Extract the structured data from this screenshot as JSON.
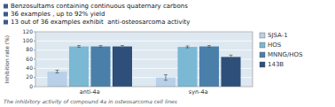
{
  "chart_data": {
    "type": "bar",
    "annotations": [
      "Benzosultams containing continuous quaternary carbons",
      "36 examples , up to 92% yield",
      "13 out of 36 examples exhibit  anti-osteosarcoma activity",
      "The inhibitory activity of compound 4a in osteosarcoma cell lines"
    ],
    "ylabel": "Inhibition rate (%)",
    "categories": [
      "anti-4a",
      "syn-4a"
    ],
    "series": [
      {
        "name": "SJSA-1",
        "color": "#b8d0e8",
        "values": [
          33,
          20
        ],
        "errors": [
          3,
          6
        ]
      },
      {
        "name": "HOS",
        "color": "#7ab8d4",
        "values": [
          88,
          87
        ],
        "errors": [
          2,
          2
        ]
      },
      {
        "name": "MNNG/HOS",
        "color": "#4a7faa",
        "values": [
          88,
          88
        ],
        "errors": [
          2,
          2
        ]
      },
      {
        "name": "143B",
        "color": "#2d4f7a",
        "values": [
          88,
          65
        ],
        "errors": [
          2,
          4
        ]
      }
    ],
    "ylim": [
      0,
      120
    ],
    "yticks": [
      0,
      20,
      40,
      60,
      80,
      100,
      120
    ],
    "grid": true,
    "legend": "right"
  }
}
